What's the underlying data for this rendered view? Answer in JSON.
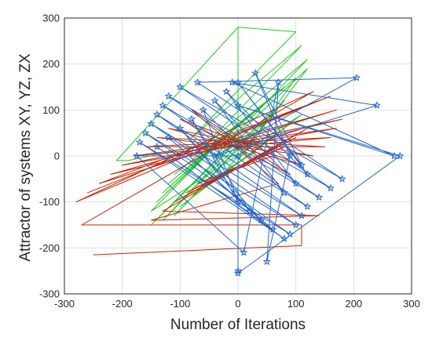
{
  "chart_data": {
    "type": "line",
    "title": "",
    "xlabel": "Number of Iterations",
    "ylabel": "Attractor of systems XY, YZ, ZX",
    "xlim": [
      -300,
      300
    ],
    "ylim": [
      -300,
      300
    ],
    "xticks": [
      -300,
      -200,
      -100,
      0,
      100,
      200,
      300
    ],
    "yticks": [
      -300,
      -200,
      -100,
      0,
      100,
      200,
      300
    ],
    "grid": true,
    "series": [
      {
        "color": "#22cc22",
        "marker": "none",
        "x": [
          0,
          0,
          100,
          -80,
          110,
          -60,
          120,
          -40,
          120,
          0,
          100,
          -90,
          80,
          -110,
          60,
          -120,
          40,
          -130,
          20,
          -140,
          0,
          -150,
          110,
          -100,
          90,
          -80,
          70,
          -60,
          50,
          -40,
          30,
          -20,
          80,
          -110,
          60,
          -130,
          20,
          -150,
          0,
          -190,
          -210,
          0
        ],
        "y": [
          0,
          280,
          270,
          40,
          240,
          20,
          210,
          0,
          190,
          -10,
          170,
          -30,
          150,
          -40,
          130,
          -60,
          110,
          -80,
          90,
          -100,
          70,
          -120,
          90,
          -110,
          70,
          -90,
          50,
          -70,
          30,
          -50,
          10,
          -30,
          120,
          -130,
          100,
          -140,
          60,
          -150,
          40,
          -10,
          -10,
          280
        ]
      },
      {
        "color": "#cc2200",
        "marker": "none",
        "x": [
          -250,
          110,
          110,
          -270,
          130,
          -280,
          140,
          -260,
          160,
          -240,
          170,
          -220,
          180,
          -200,
          170,
          -180,
          160,
          -160,
          150,
          -140,
          130,
          -120,
          110,
          -100,
          90,
          -80,
          70,
          -150,
          140,
          -130,
          120,
          -110,
          100,
          -90,
          80,
          -70,
          60
        ],
        "y": [
          -215,
          -195,
          -150,
          -150,
          140,
          -100,
          120,
          -80,
          130,
          -60,
          100,
          -40,
          80,
          -20,
          60,
          0,
          40,
          20,
          20,
          40,
          0,
          60,
          -20,
          80,
          -40,
          100,
          -60,
          -140,
          -130,
          -120,
          60,
          -100,
          40,
          -80,
          20,
          -60,
          0
        ]
      },
      {
        "color": "#2266cc",
        "marker": "star",
        "x": [
          0,
          280,
          0,
          270,
          -10,
          240,
          -40,
          205,
          -70,
          180,
          -100,
          160,
          -120,
          140,
          -130,
          120,
          -140,
          110,
          -150,
          100,
          -160,
          90,
          -170,
          80,
          -140,
          60,
          -120,
          40,
          -100,
          20,
          -80,
          0,
          -60,
          80,
          -40,
          100,
          -20,
          120,
          0,
          110,
          30,
          90,
          50,
          70,
          10,
          -175,
          0,
          0
        ],
        "y": [
          -255,
          0,
          110,
          0,
          160,
          110,
          0,
          170,
          160,
          -50,
          150,
          -70,
          130,
          -90,
          110,
          -110,
          90,
          -130,
          70,
          -150,
          50,
          -170,
          30,
          -180,
          20,
          -160,
          40,
          -140,
          60,
          -120,
          80,
          -100,
          100,
          -80,
          120,
          -60,
          140,
          -40,
          160,
          -20,
          180,
          0,
          -230,
          160,
          -210,
          0,
          0,
          -250
        ]
      }
    ]
  }
}
